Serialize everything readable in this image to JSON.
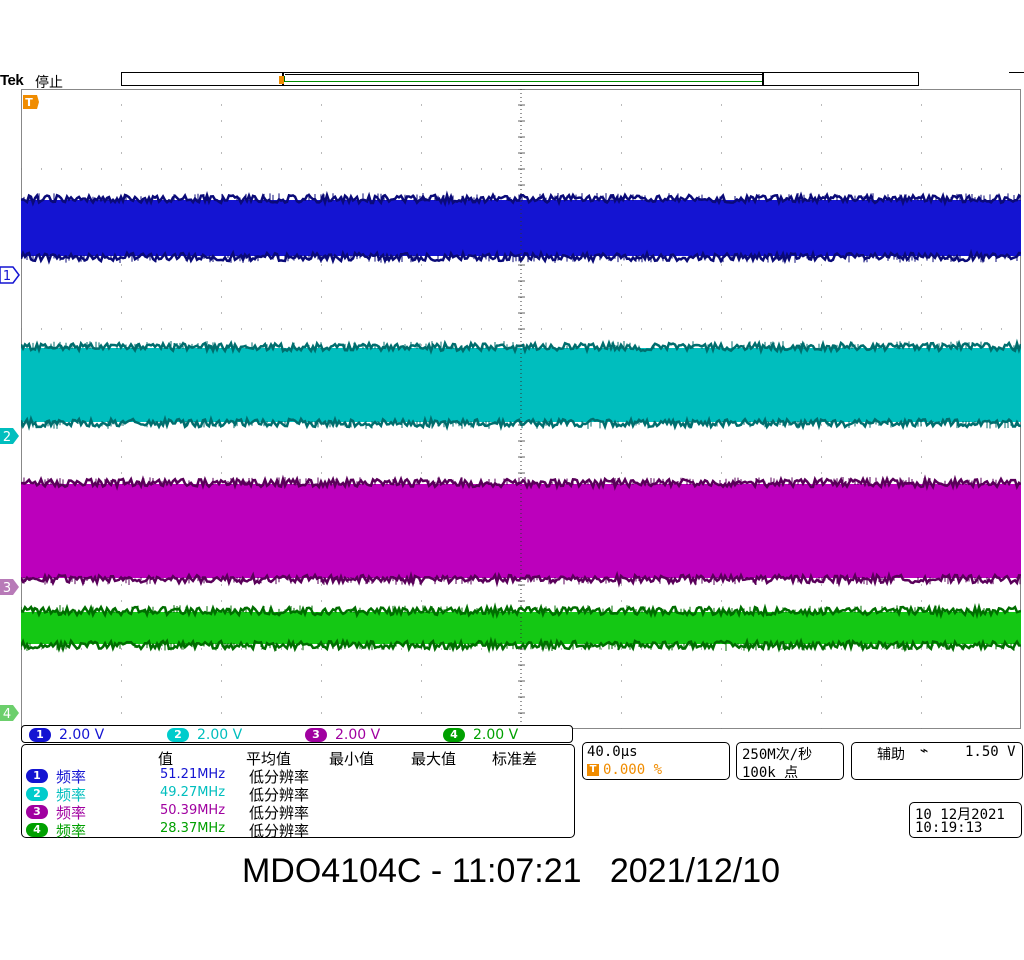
{
  "header": {
    "brand": "Tek",
    "run_state": "停止"
  },
  "colors": {
    "ch1": "#1414d2",
    "ch1_dark": "#0a0a78",
    "ch2": "#00bebe",
    "ch2_dark": "#006e6e",
    "ch3": "#bc00bc",
    "ch3_dark": "#5a005a",
    "ch4": "#14c814",
    "ch4_dark": "#006e00",
    "trigger": "#f08c00"
  },
  "markers": {
    "trigger": "T",
    "ch1": "1",
    "ch2": "2",
    "ch3": "3",
    "ch4": "4"
  },
  "scales": [
    {
      "channel": "1",
      "value": "2.00 V"
    },
    {
      "channel": "2",
      "value": "2.00 V"
    },
    {
      "channel": "3",
      "value": "2.00 V"
    },
    {
      "channel": "4",
      "value": "2.00 V"
    }
  ],
  "measurements": {
    "headers": {
      "value": "值",
      "mean": "平均值",
      "min": "最小值",
      "max": "最大值",
      "stddev": "标准差"
    },
    "rows": [
      {
        "channel": "1",
        "name": "频率",
        "value": "51.21MHz",
        "note": "低分辨率"
      },
      {
        "channel": "2",
        "name": "频率",
        "value": "49.27MHz",
        "note": "低分辨率"
      },
      {
        "channel": "3",
        "name": "频率",
        "value": "50.39MHz",
        "note": "低分辨率"
      },
      {
        "channel": "4",
        "name": "频率",
        "value": "28.37MHz",
        "note": "低分辨率"
      }
    ]
  },
  "timebase": {
    "scale": "40.0µs",
    "trigger_icon": "T",
    "trigger_position": "0.000 %"
  },
  "acquisition": {
    "sample_rate": "250M次/秒",
    "record_length": "100k 点"
  },
  "trigger": {
    "source": "辅助",
    "slope_icon": "falling-edge-icon",
    "slope_glyph": "⌁",
    "level": "1.50 V"
  },
  "datetime": {
    "date": "10 12月2021",
    "time": "10:19:13"
  },
  "footer": {
    "caption": "MDO4104C - 11:07:21   2021/12/10"
  }
}
